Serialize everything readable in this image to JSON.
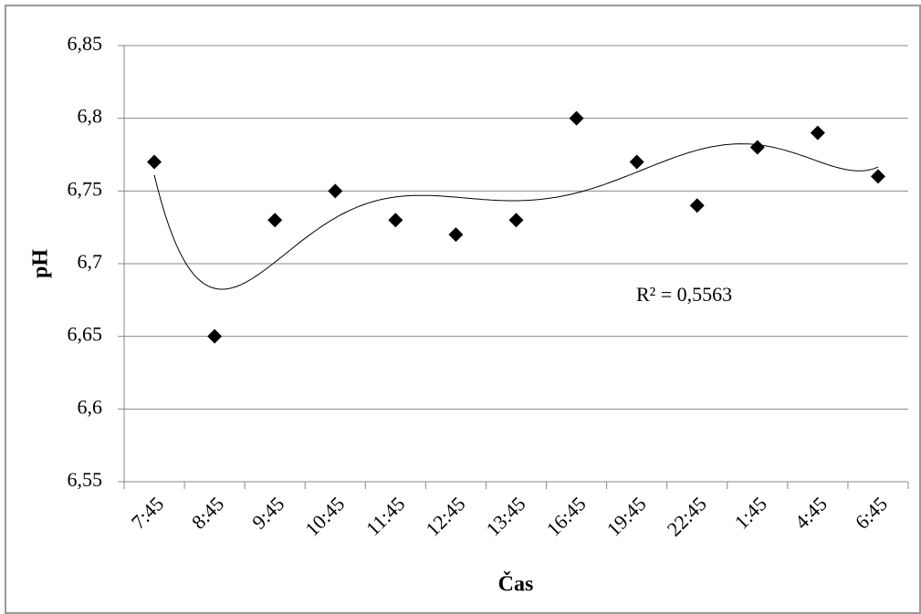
{
  "chart_data": {
    "type": "scatter",
    "x_label": "Čas",
    "y_label": "pH",
    "annotation": "R² = 0,5563",
    "categories": [
      "7:45",
      "8:45",
      "9:45",
      "10:45",
      "11:45",
      "12:45",
      "13:45",
      "16:45",
      "19:45",
      "22:45",
      "1:45",
      "4:45",
      "6:45"
    ],
    "values": [
      6.77,
      6.65,
      6.73,
      6.75,
      6.73,
      6.72,
      6.73,
      6.8,
      6.77,
      6.74,
      6.78,
      6.79,
      6.76
    ],
    "color": "#000000",
    "ylim": [
      6.55,
      6.85
    ],
    "yticks": [
      {
        "value": 6.55,
        "label": "6,55"
      },
      {
        "value": 6.6,
        "label": "6,6"
      },
      {
        "value": 6.65,
        "label": "6,65"
      },
      {
        "value": 6.7,
        "label": "6,7"
      },
      {
        "value": 6.75,
        "label": "6,75"
      },
      {
        "value": 6.8,
        "label": "6,8"
      },
      {
        "value": 6.85,
        "label": "6,85"
      }
    ],
    "grid": true
  }
}
